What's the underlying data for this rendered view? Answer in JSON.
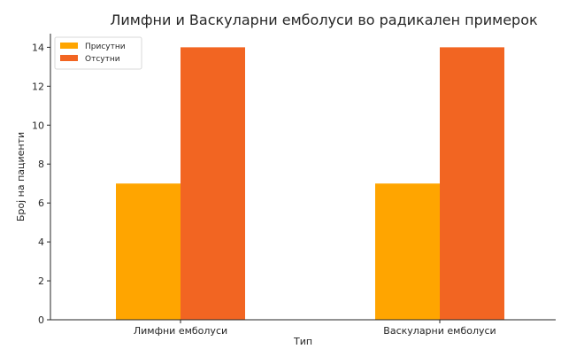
{
  "chart_data": {
    "type": "bar",
    "title": "Лимфни и Васкуларни емболуси во радикален примерок",
    "xlabel": "Тип",
    "ylabel": "Број на пациенти",
    "categories": [
      "Лимфни емболуси",
      "Васкуларни емболуси"
    ],
    "series": [
      {
        "name": "Присутни",
        "values": [
          7,
          7
        ],
        "color": "#ffa500"
      },
      {
        "name": "Отсутни",
        "values": [
          14,
          14
        ],
        "color": "#f26522"
      }
    ],
    "ylim": [
      0,
      14.7
    ],
    "yticks": [
      0,
      2,
      4,
      6,
      8,
      10,
      12,
      14
    ],
    "legend": "top-left",
    "grid": false
  }
}
